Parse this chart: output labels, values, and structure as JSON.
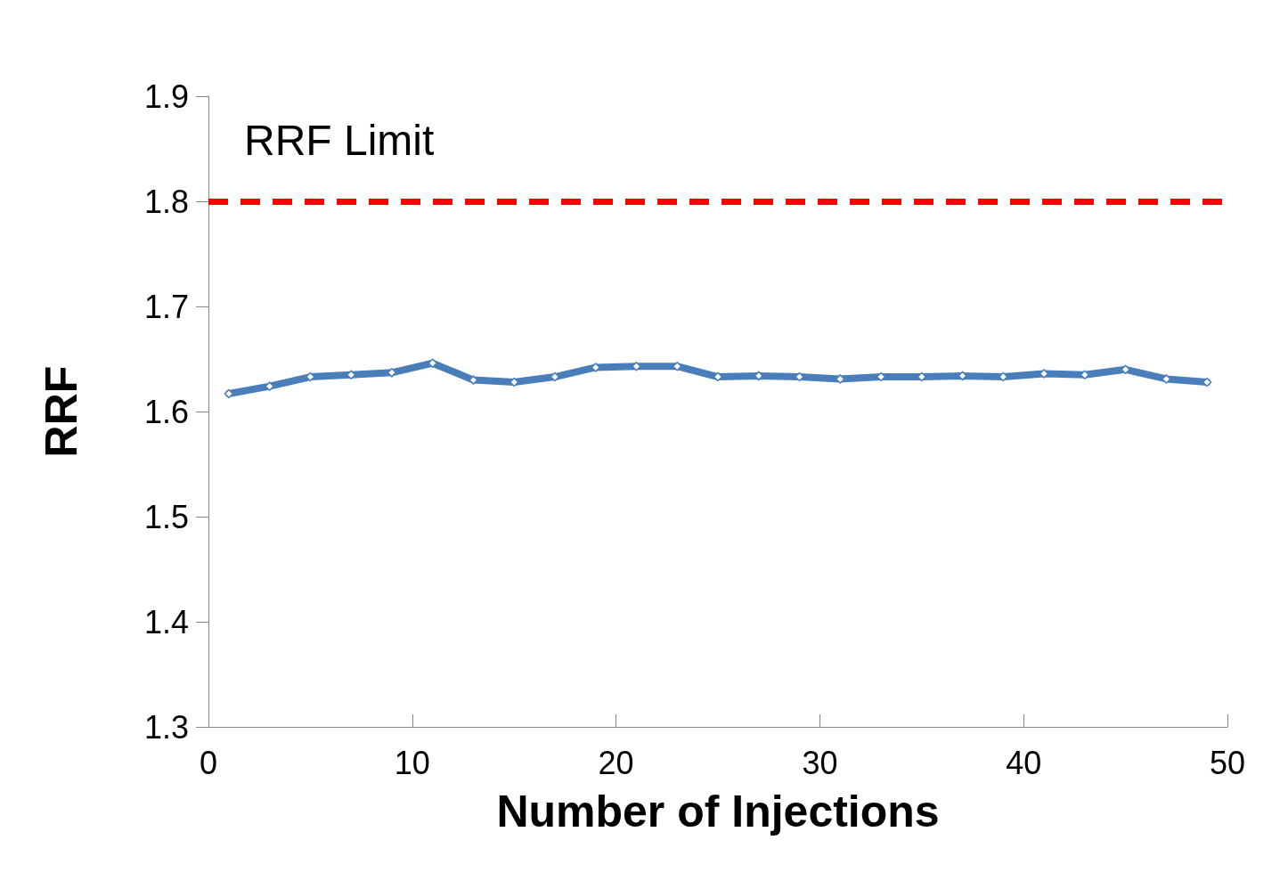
{
  "chart_data": {
    "type": "line",
    "xlabel": "Number of Injections",
    "ylabel": "RRF",
    "x": [
      1,
      3,
      5,
      7,
      9,
      11,
      13,
      15,
      17,
      19,
      21,
      23,
      25,
      27,
      29,
      31,
      33,
      35,
      37,
      39,
      41,
      43,
      45,
      47,
      49
    ],
    "series": [
      {
        "color": "#4a7ebb",
        "values": [
          1.617,
          1.624,
          1.633,
          1.635,
          1.637,
          1.646,
          1.63,
          1.628,
          1.633,
          1.642,
          1.643,
          1.643,
          1.633,
          1.634,
          1.633,
          1.631,
          1.633,
          1.633,
          1.634,
          1.633,
          1.636,
          1.635,
          1.64,
          1.631,
          1.628
        ]
      }
    ],
    "xlim": [
      0,
      50
    ],
    "xticks": [
      0,
      10,
      20,
      30,
      40,
      50
    ],
    "ylim": [
      1.3,
      1.9
    ],
    "yticks": [
      1.3,
      1.4,
      1.5,
      1.6,
      1.7,
      1.8,
      1.9
    ],
    "ref_lines": [
      {
        "axis": "y",
        "value": 1.8,
        "label": "RRF Limit",
        "color": "#ff0000",
        "line_style": "dashed"
      }
    ],
    "marker": "diamond",
    "line_style": "solid",
    "grid": false
  }
}
